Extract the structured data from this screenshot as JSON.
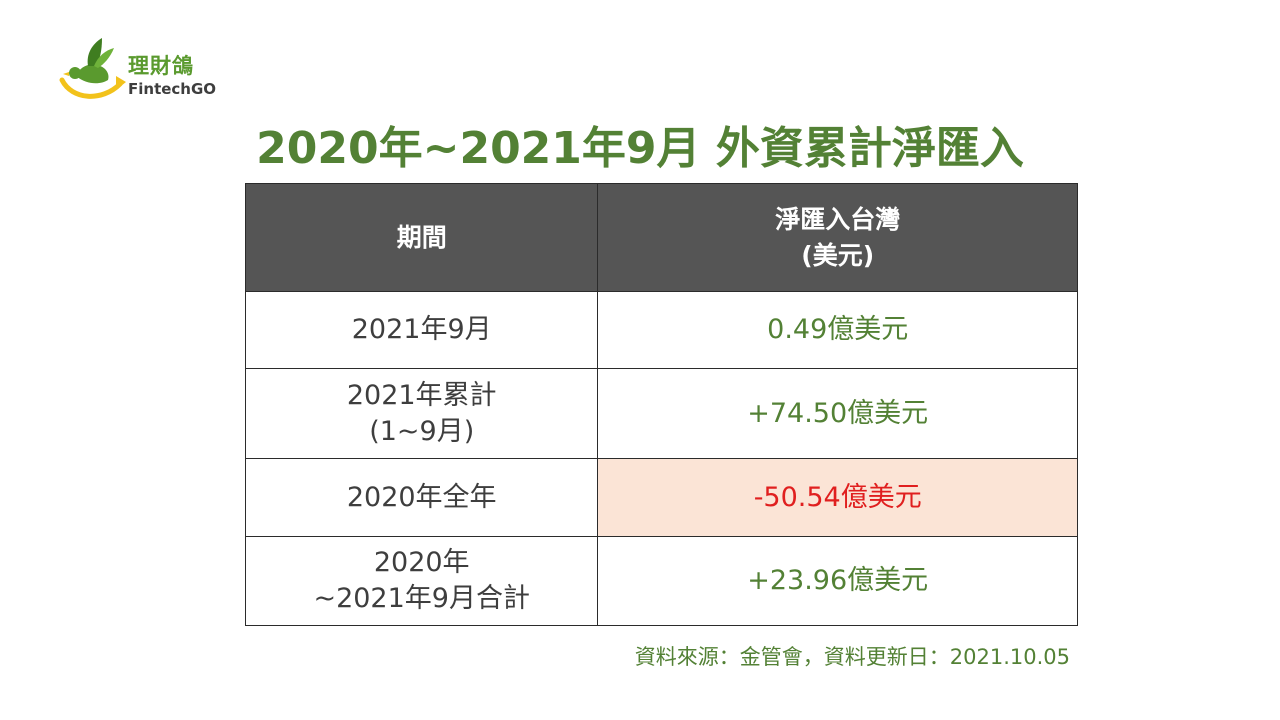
{
  "logo": {
    "name_cn": "理財鴿",
    "name_en": "FintechGO"
  },
  "colors": {
    "accent_green": "#538135",
    "header_bg": "#555555",
    "negative_red": "#e01f1f",
    "negative_bg": "#fbe4d6"
  },
  "title": "2020年~2021年9月  外資累計淨匯入",
  "table": {
    "headers": {
      "period": "期間",
      "value_line1": "淨匯入台灣",
      "value_line2": "(美元)"
    },
    "rows": [
      {
        "period_line1": "2021年9月",
        "period_line2": "",
        "value": "0.49億美元"
      },
      {
        "period_line1": "2021年累計",
        "period_line2": "(1~9月)",
        "value": "+74.50億美元"
      },
      {
        "period_line1": "2020年全年",
        "period_line2": "",
        "value": "-50.54億美元"
      },
      {
        "period_line1": "2020年",
        "period_line2": "~2021年9月合計",
        "value": "+23.96億美元"
      }
    ]
  },
  "source": "資料來源：金管會，資料更新日：2021.10.05"
}
